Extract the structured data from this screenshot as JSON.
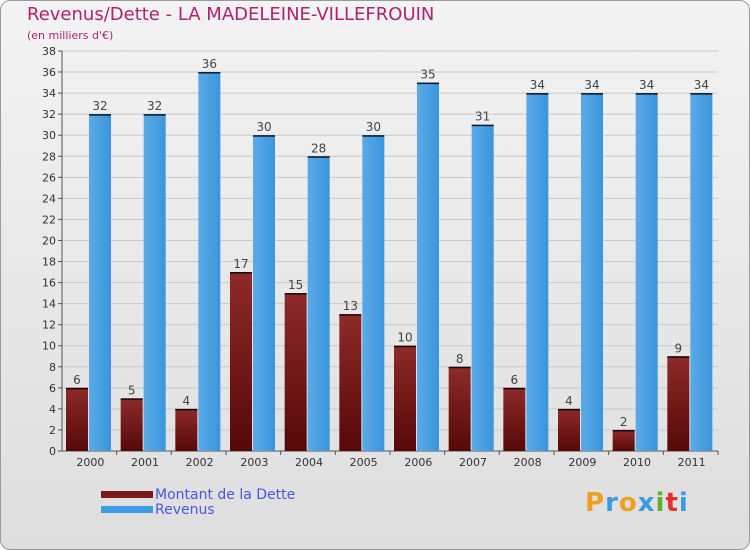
{
  "chart_data": {
    "type": "bar",
    "title": "Revenus/Dette - LA MADELEINE-VILLEFROUIN",
    "subtitle": "(en milliers d'€)",
    "categories": [
      "2000",
      "2001",
      "2002",
      "2003",
      "2004",
      "2005",
      "2006",
      "2007",
      "2008",
      "2009",
      "2010",
      "2011"
    ],
    "series": [
      {
        "name": "Montant de la Dette",
        "values": [
          6,
          5,
          4,
          17,
          15,
          13,
          10,
          8,
          6,
          4,
          2,
          9
        ],
        "color": "#7a1a1a"
      },
      {
        "name": "Revenus",
        "values": [
          32,
          32,
          36,
          30,
          28,
          30,
          35,
          31,
          34,
          34,
          34,
          34
        ],
        "color": "#3d9be2"
      }
    ],
    "ylim": [
      0,
      38
    ],
    "yticks": [
      0,
      2,
      4,
      6,
      8,
      10,
      12,
      14,
      16,
      18,
      20,
      22,
      24,
      26,
      28,
      30,
      32,
      34,
      36,
      38
    ],
    "grid": true,
    "legend_position": "bottom-left",
    "value_labels": true
  },
  "logo": {
    "letters": [
      "P",
      "r",
      "o",
      "x",
      "i",
      "t",
      "i"
    ],
    "colors": [
      "#f0a020",
      "#3c9be0",
      "#f0a020",
      "#3c9be0",
      "#60b030",
      "#e03030",
      "#3c9be0"
    ]
  }
}
